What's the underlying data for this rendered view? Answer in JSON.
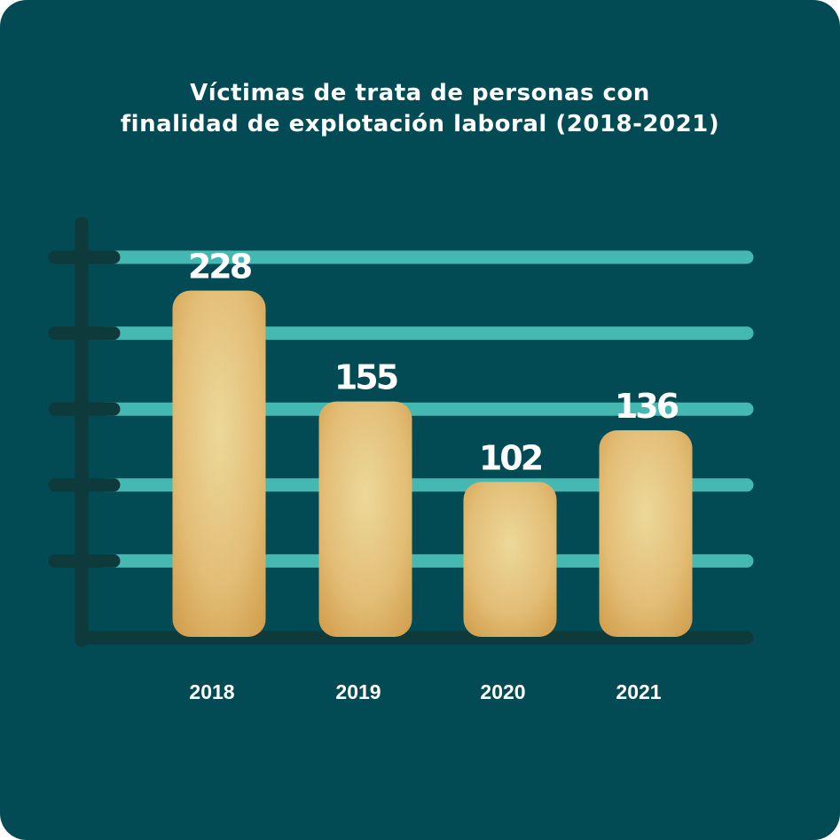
{
  "chart_data": {
    "type": "bar",
    "title_lines": [
      "Víctimas de trata de personas con",
      "finalidad de explotación laboral (2018-2021)"
    ],
    "categories": [
      "2018",
      "2019",
      "2020",
      "2021"
    ],
    "values": [
      228,
      155,
      102,
      136
    ],
    "value_labels": [
      "228",
      "155",
      "102",
      "136"
    ],
    "ylim": [
      0,
      250
    ],
    "grid": true,
    "gridlines": 5,
    "legend": "none"
  },
  "colors": {
    "background": "#024b55",
    "gridline": "#45b8b1",
    "axis": "#0f3a3c",
    "bar_light": "#f4dc95",
    "bar_dark": "#d9a44e",
    "text": "#ffffff"
  }
}
